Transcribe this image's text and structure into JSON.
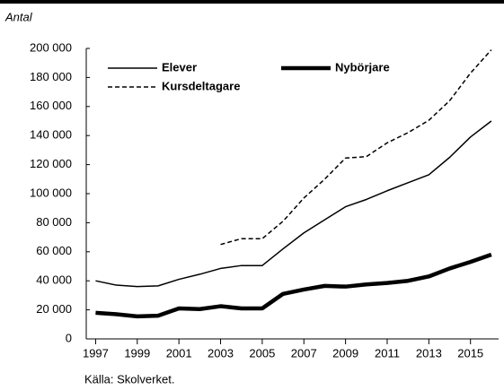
{
  "chart_data": {
    "type": "line",
    "y_label": "Antal",
    "source": "Källa: Skolverket.",
    "x": [
      1997,
      1998,
      1999,
      2000,
      2001,
      2002,
      2003,
      2004,
      2005,
      2006,
      2007,
      2008,
      2009,
      2010,
      2011,
      2012,
      2013,
      2014,
      2015,
      2016
    ],
    "series": [
      {
        "name": "Elever",
        "color": "#000000",
        "width": 1.5,
        "dash": "solid",
        "values": [
          40000,
          37000,
          36000,
          36500,
          41000,
          44500,
          48500,
          50500,
          50500,
          62000,
          73000,
          82000,
          91000,
          96000,
          102000,
          107500,
          113000,
          125000,
          139000,
          150000
        ]
      },
      {
        "name": "Nybörjare",
        "color": "#000000",
        "width": 4.5,
        "dash": "solid",
        "values": [
          18000,
          17000,
          15500,
          16000,
          21000,
          20500,
          22500,
          21000,
          21000,
          31000,
          34000,
          36500,
          36000,
          37500,
          38500,
          40000,
          43000,
          48500,
          53000,
          58000
        ]
      },
      {
        "name": "Kursdeltagare",
        "color": "#000000",
        "width": 1.5,
        "dash": "dashed",
        "values": [
          null,
          null,
          null,
          null,
          null,
          null,
          65000,
          69000,
          69000,
          81000,
          97000,
          110000,
          124500,
          125500,
          135000,
          142000,
          150500,
          164000,
          183000,
          199000
        ]
      }
    ],
    "xlim": [
      1996.55,
      2016.35
    ],
    "xticks": [
      1997,
      1999,
      2001,
      2003,
      2005,
      2007,
      2009,
      2011,
      2013,
      2015
    ],
    "ylim": [
      0,
      200000
    ],
    "yticks": [
      0,
      {
        "value": 20000,
        "label": "20 000"
      },
      {
        "value": 40000,
        "label": "40 000"
      },
      {
        "value": 60000,
        "label": "60 000"
      },
      {
        "value": 80000,
        "label": "80 000"
      },
      {
        "value": 100000,
        "label": "100 000"
      },
      {
        "value": 120000,
        "label": "120 000"
      },
      {
        "value": 140000,
        "label": "140 000"
      },
      {
        "value": 160000,
        "label": "160 000"
      },
      {
        "value": 180000,
        "label": "180 000"
      },
      {
        "value": 200000,
        "label": "200 000"
      }
    ],
    "grid": false
  }
}
